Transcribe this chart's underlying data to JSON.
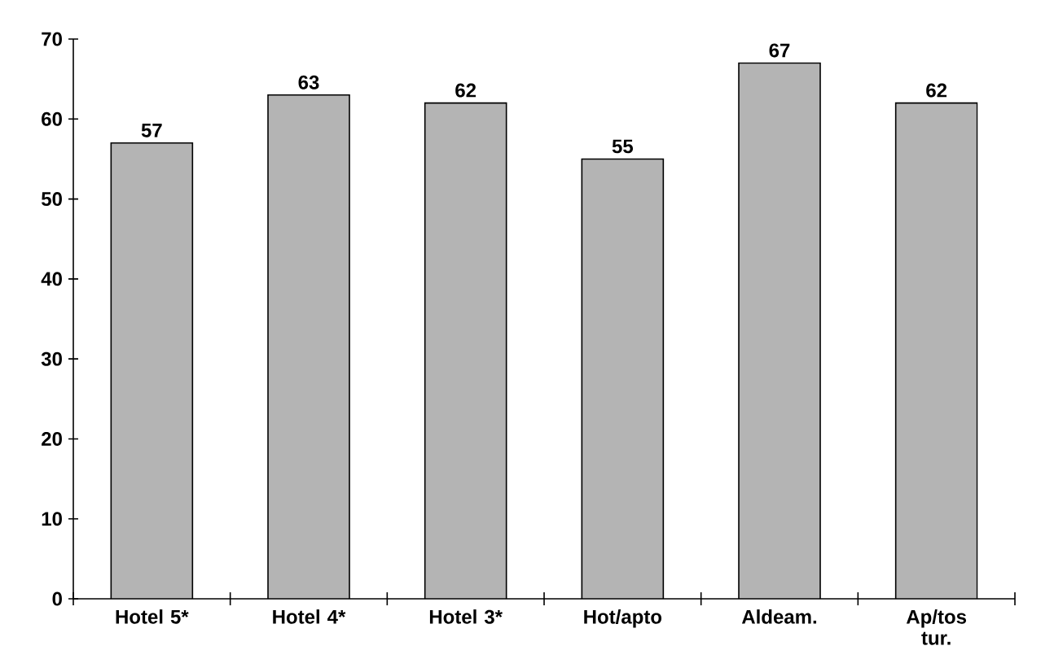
{
  "chart_data": {
    "type": "bar",
    "categories": [
      "Hotel 5*",
      "Hotel 4*",
      "Hotel 3*",
      "Hot/apto",
      "Aldeam.",
      "Ap/tos tur."
    ],
    "values": [
      57,
      63,
      62,
      55,
      67,
      62
    ],
    "color": "#b4b4b4",
    "ylim": [
      0,
      70
    ],
    "yticks": [
      0,
      10,
      20,
      30,
      40,
      50,
      60,
      70
    ],
    "data_labels": true
  }
}
